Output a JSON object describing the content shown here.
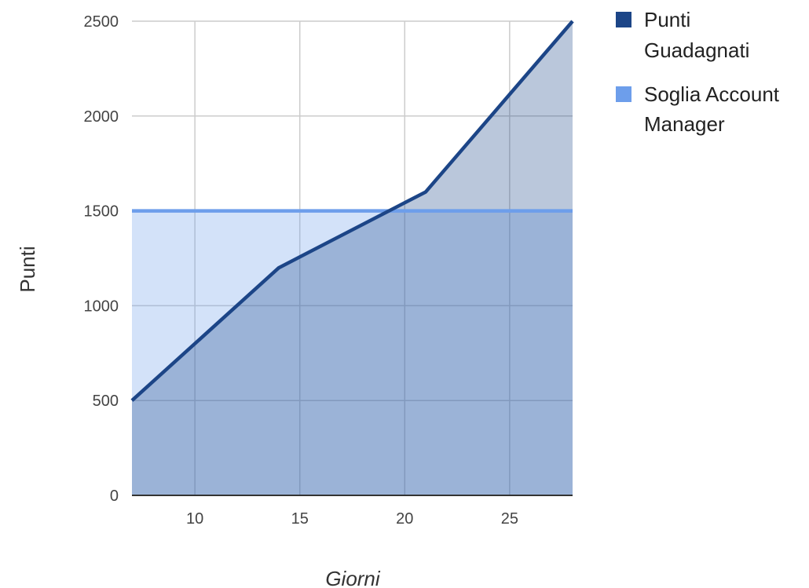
{
  "chart_data": {
    "type": "area",
    "xlabel": "Giorni",
    "ylabel": "Punti",
    "xlim": [
      7,
      28
    ],
    "ylim": [
      0,
      2500
    ],
    "x_ticks": [
      10,
      15,
      20,
      25
    ],
    "y_ticks": [
      0,
      500,
      1000,
      1500,
      2000,
      2500
    ],
    "grid": true,
    "legend": "right",
    "series": [
      {
        "name": "Punti Guadagnati",
        "color": "#1c4587",
        "points": [
          [
            7,
            500
          ],
          [
            14,
            1200
          ],
          [
            21,
            1600
          ],
          [
            28,
            2500
          ]
        ]
      },
      {
        "name": "Soglia Account Manager",
        "color": "#6d9eeb",
        "points": [
          [
            7,
            1500
          ],
          [
            28,
            1500
          ]
        ]
      }
    ],
    "legend_lines": [
      [
        "Punti",
        "Guadagnati"
      ],
      [
        "Soglia Account",
        "Manager"
      ]
    ]
  }
}
